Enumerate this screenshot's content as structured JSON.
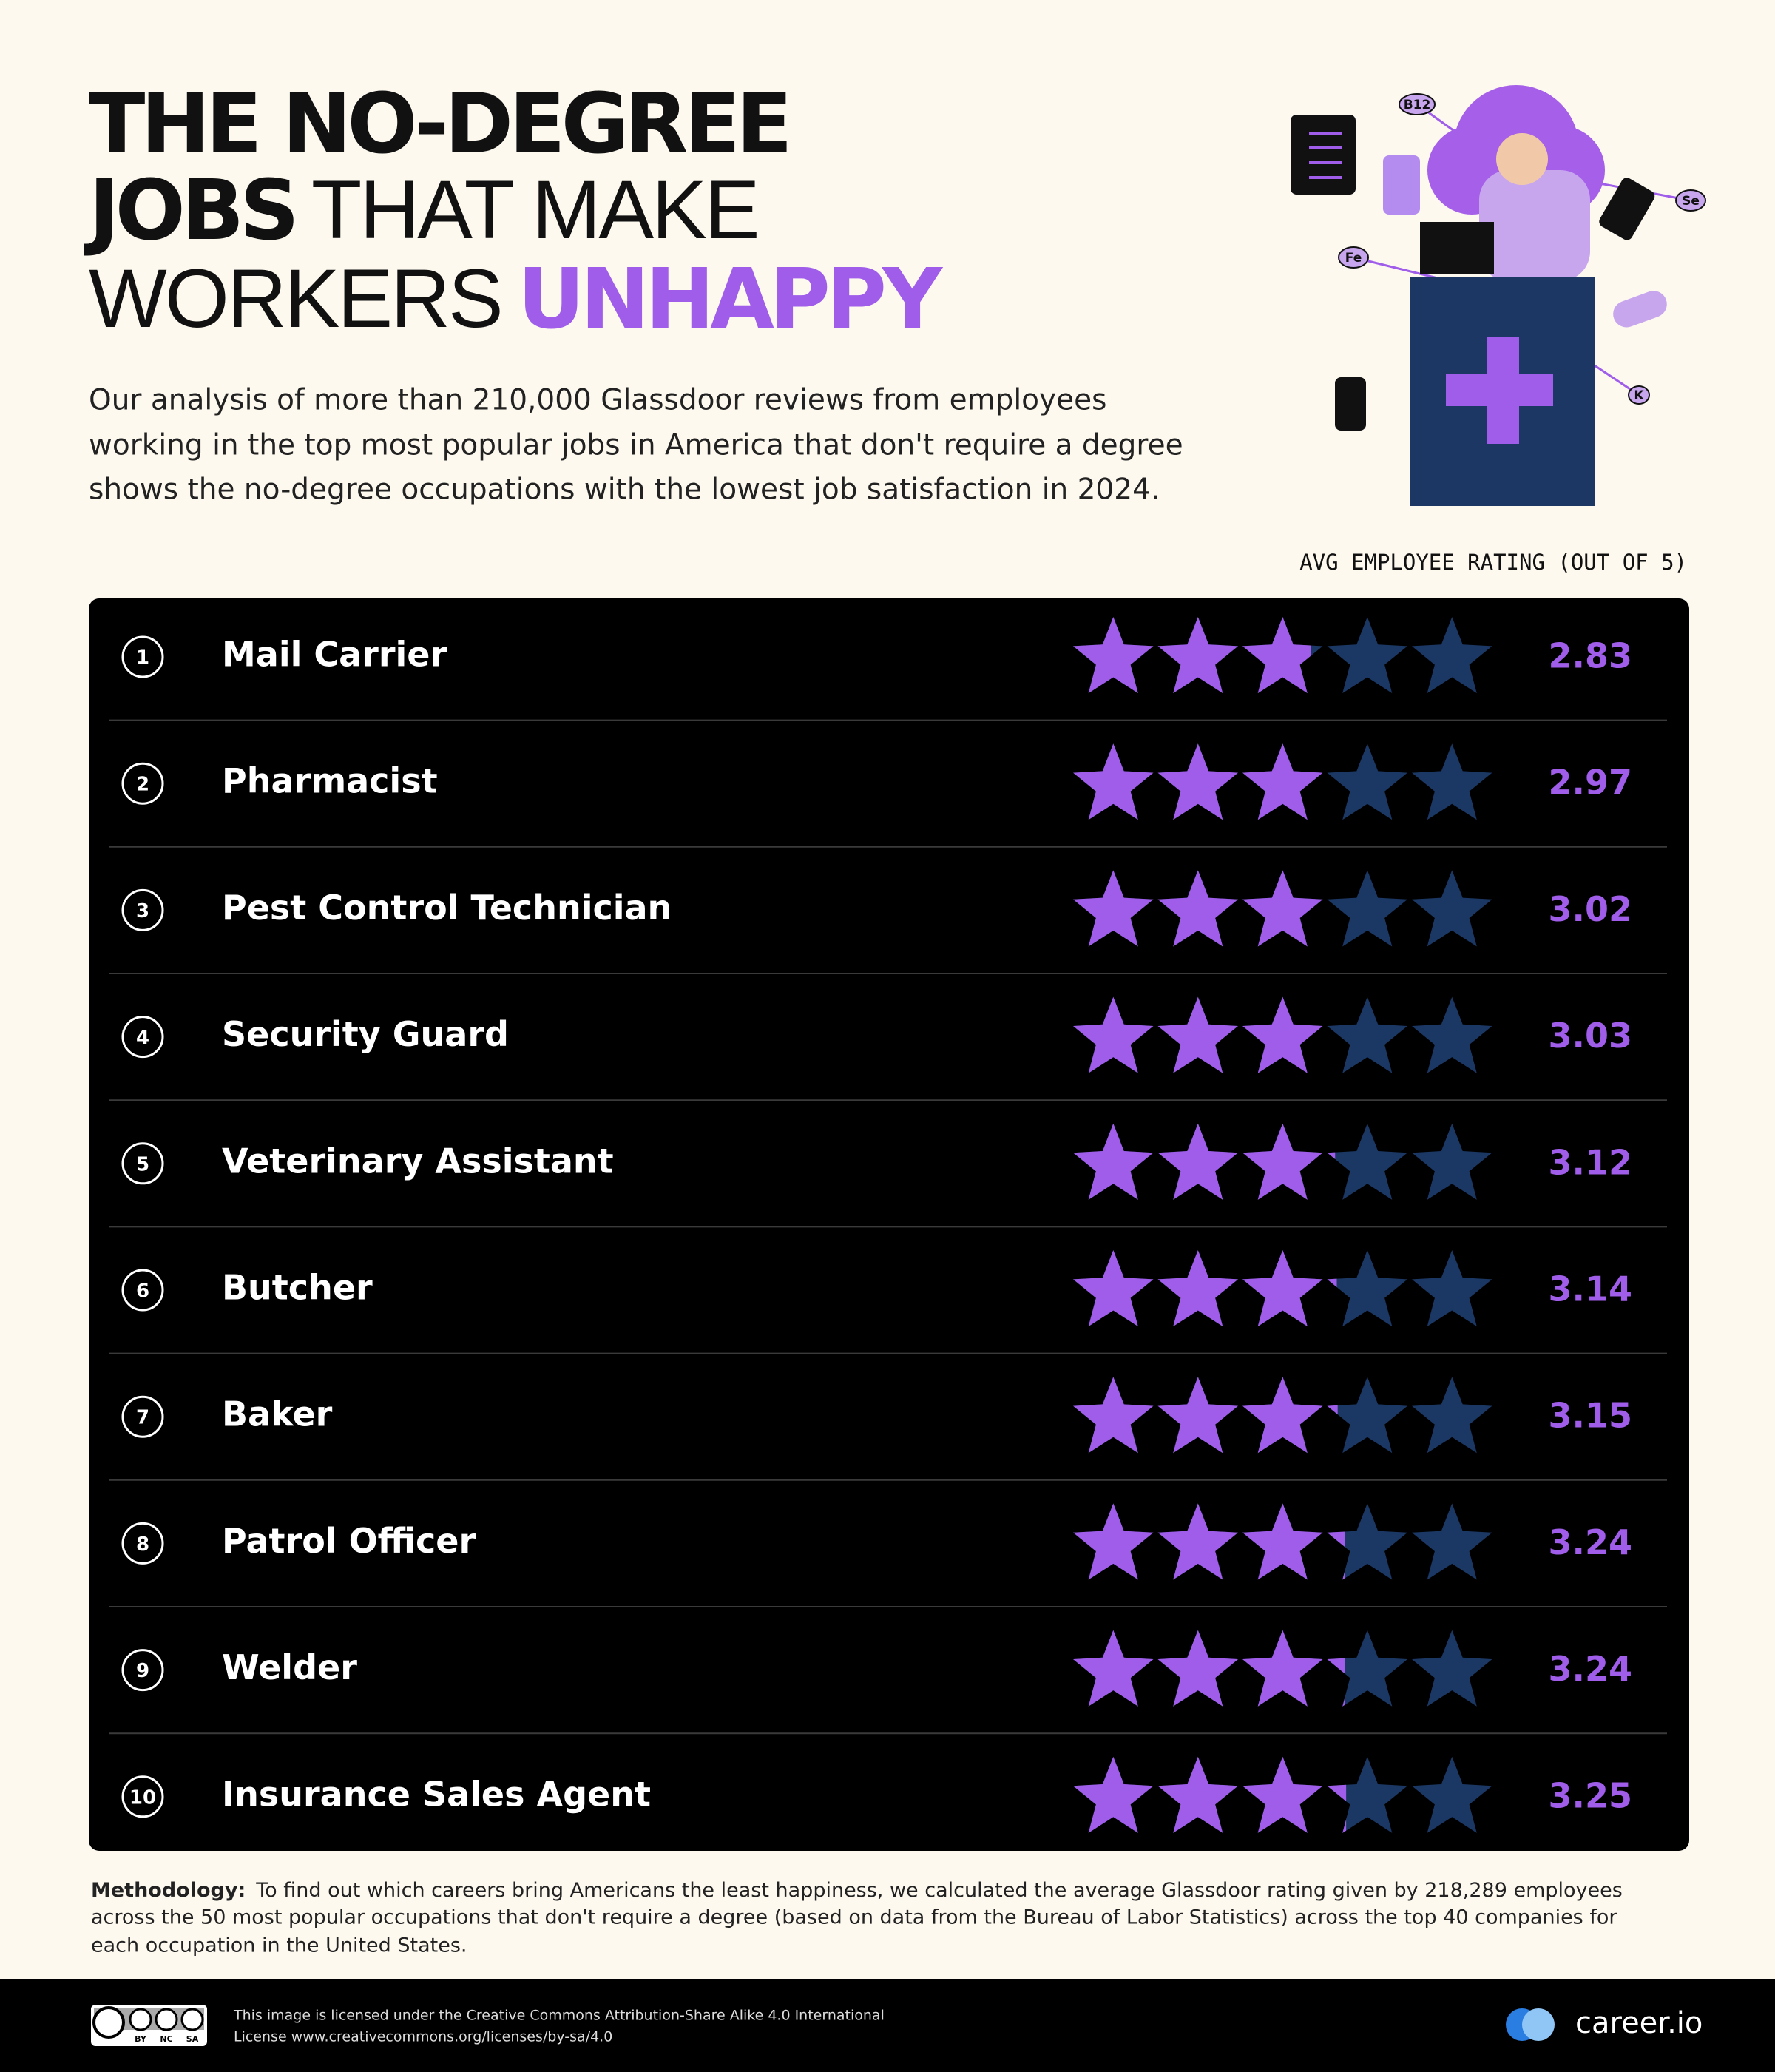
{
  "chart_data": {
    "type": "star-rating",
    "title": [
      "THE NO-DEGREE",
      "JOBS",
      "THAT MAKE",
      "WORKERS",
      "UNHAPPY"
    ],
    "subtitle": [
      "Our analysis of more than 210,000 Glassdoor reviews from employees",
      "working in the top most popular jobs in America that don't require a degree",
      "shows the no-degree occupations with the lowest job satisfaction in 2024."
    ],
    "value_axis_label": "AVG EMPLOYEE RATING (OUT OF 5)",
    "ranks": [
      1,
      2,
      3,
      4,
      5,
      6,
      7,
      8,
      9,
      10
    ],
    "categories": [
      "Mail Carrier",
      "Pharmacist",
      "Pest Control Technician",
      "Security Guard",
      "Veterinary Assistant",
      "Butcher",
      "Baker",
      "Patrol Officer",
      "Welder",
      "Insurance Sales Agent"
    ],
    "values": [
      2.83,
      2.97,
      3.02,
      3.03,
      3.12,
      3.14,
      3.15,
      3.24,
      3.24,
      3.25
    ],
    "xlim": [
      0,
      5
    ],
    "color": "#9f5de9",
    "empty_color": "#1b3763",
    "methodology_label": "Methodology:",
    "methodology": [
      "To find out which careers bring Americans the least happiness, we calculated the average Glassdoor rating given by 218,289 employees",
      "across the 50 most popular occupations that don't require a degree (based on data from the Bureau of Labor Statistics) across the top 40 companies for",
      "each occupation in the United States."
    ],
    "illustration_labels": [
      "B12",
      "Se",
      "Fe",
      "K"
    ],
    "license_badge": [
      "BY",
      "NC",
      "SA"
    ],
    "license": [
      "This image is licensed under the Creative Commons Attribution-Share Alike 4.0 International",
      "License www.creativecommons.org/licenses/by-sa/4.0"
    ],
    "brand": "career.io"
  }
}
